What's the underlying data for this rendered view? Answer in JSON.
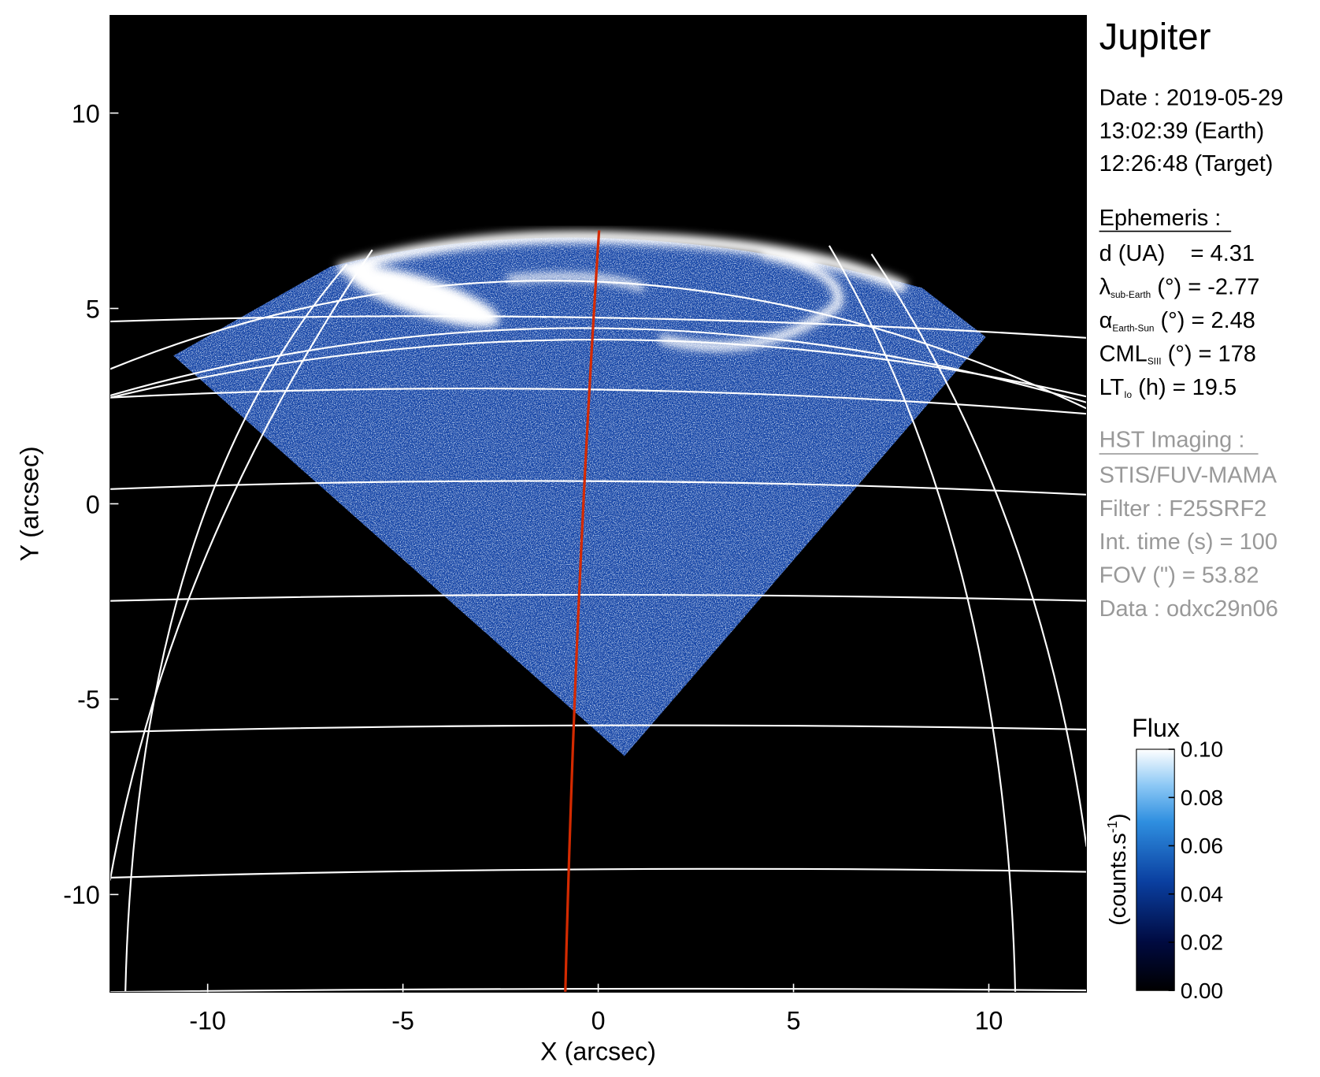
{
  "chart_data": {
    "type": "image",
    "xlabel": "X (arcsec)",
    "ylabel": "Y (arcsec)",
    "xlim": [
      -12.5,
      12.5
    ],
    "ylim": [
      -12.5,
      12.5
    ],
    "xticks": [
      -10,
      -5,
      0,
      5,
      10
    ],
    "yticks": [
      -10,
      -5,
      0,
      5,
      10
    ],
    "colorbar": {
      "title": "Flux",
      "label": "(counts.s",
      "label_sup": "-1",
      "label_end": ")",
      "lim": [
        0,
        0.1
      ],
      "ticks": [
        {
          "value": 0,
          "label": "0.00"
        },
        0.02,
        0.04,
        0.06,
        0.08,
        {
          "value": 0.1,
          "label": "0.10"
        }
      ]
    }
  },
  "panel": {
    "title": "Jupiter",
    "date": [
      "Date : 2019-05-29",
      "13:02:39 (Earth)",
      "12:26:48 (Target)"
    ],
    "ephemeris": {
      "heading": "Ephemeris :",
      "rows": [
        {
          "text": "d (UA)    = 4.31"
        },
        {
          "symbol": "λ",
          "sub": "sub-Earth",
          "text": " (°) = -2.77"
        },
        {
          "symbol": "α",
          "sub": "Earth-Sun",
          "text": " (°) = 2.48"
        },
        {
          "symbol": "CML",
          "sub": "SIII",
          "text": " (°) = 178"
        },
        {
          "symbol": "LT",
          "sub": "Io",
          "text": " (h) = 19.5"
        }
      ]
    },
    "imaging": {
      "heading": "HST Imaging :",
      "rows": [
        "STIS/FUV-MAMA",
        "Filter : F25SRF2",
        "Int. time (s) = 100",
        "FOV (\") = 53.82",
        "Data : odxc29n06"
      ]
    }
  }
}
